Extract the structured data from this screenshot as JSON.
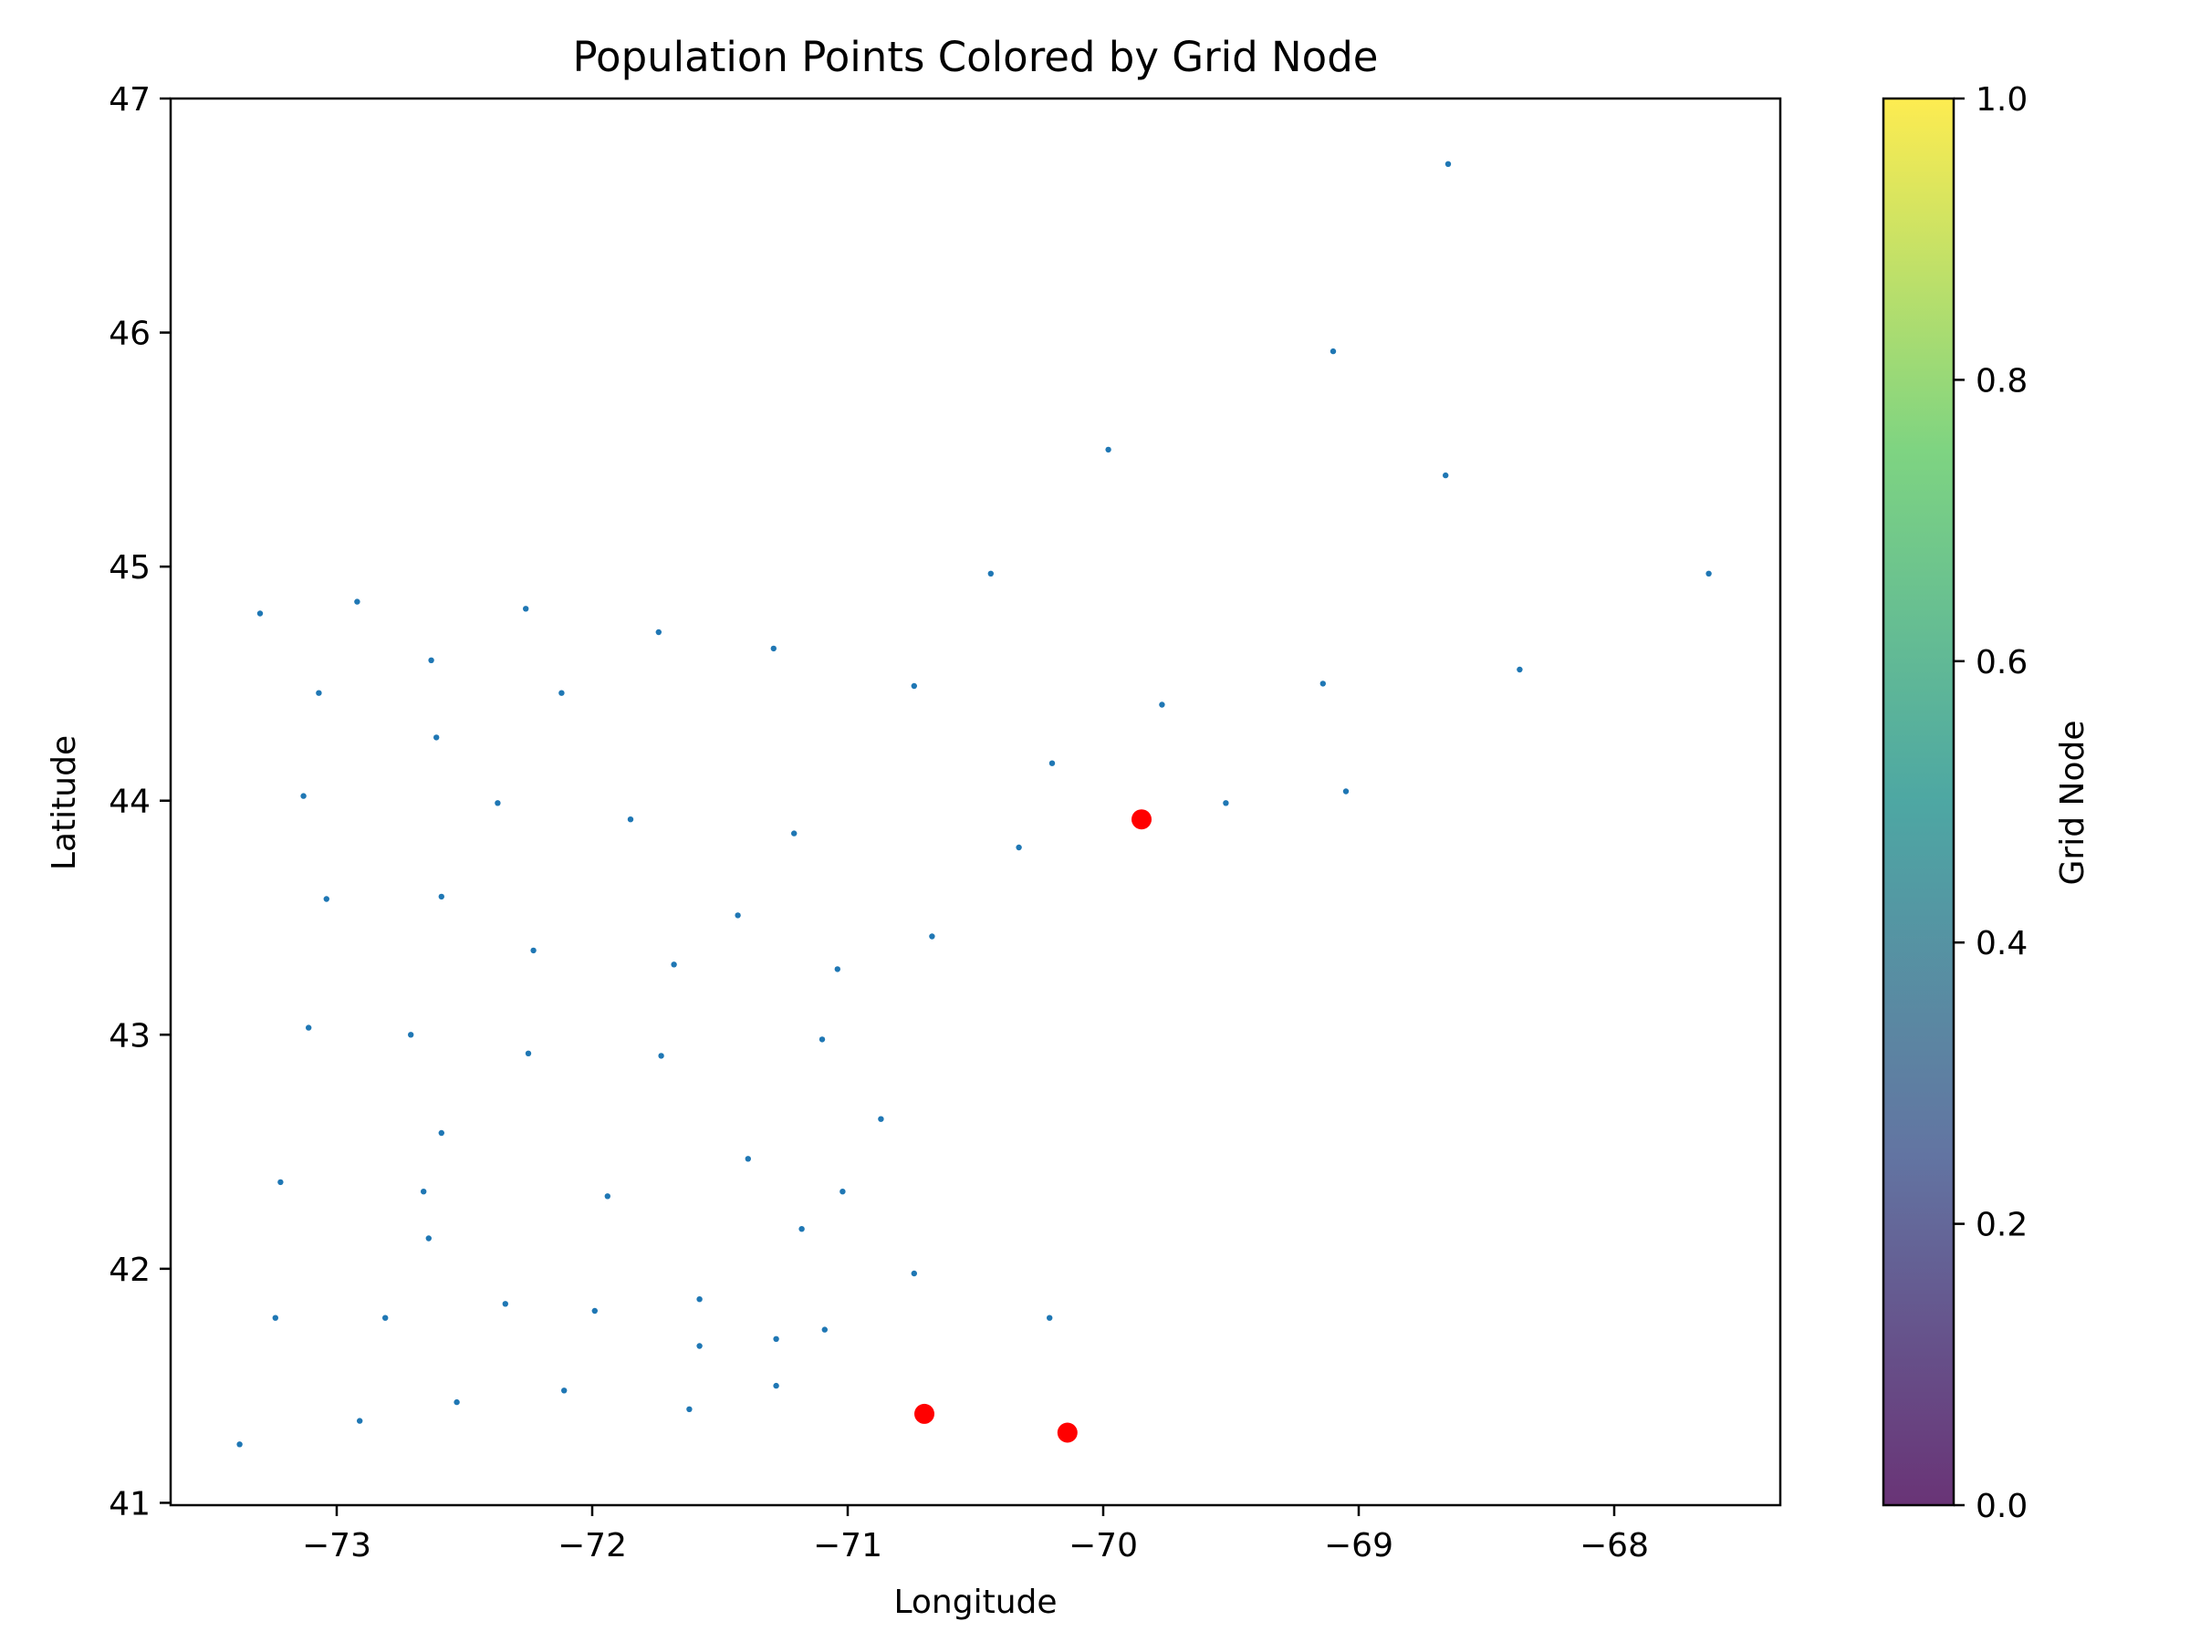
{
  "chart_data": {
    "type": "scatter",
    "title": "Population Points Colored by Grid Node",
    "xlabel": "Longitude",
    "ylabel": "Latitude",
    "xlim": [
      -73.65,
      -67.35
    ],
    "ylim": [
      40.99,
      47.0
    ],
    "x_ticks": [
      {
        "value": -73,
        "label": "−73"
      },
      {
        "value": -72,
        "label": "−72"
      },
      {
        "value": -71,
        "label": "−71"
      },
      {
        "value": -70,
        "label": "−70"
      },
      {
        "value": -69,
        "label": "−69"
      },
      {
        "value": -68,
        "label": "−68"
      }
    ],
    "y_ticks": [
      {
        "value": 41,
        "label": "41"
      },
      {
        "value": 42,
        "label": "42"
      },
      {
        "value": 43,
        "label": "43"
      },
      {
        "value": 44,
        "label": "44"
      },
      {
        "value": 45,
        "label": "45"
      },
      {
        "value": 46,
        "label": "46"
      },
      {
        "value": 47,
        "label": "47"
      }
    ],
    "grid": false,
    "series": [
      {
        "color": "#1f77b4",
        "marker": "small-dot",
        "points": [
          [
            -68.65,
            46.72
          ],
          [
            -69.1,
            45.92
          ],
          [
            -69.98,
            45.5
          ],
          [
            -68.66,
            45.39
          ],
          [
            -70.44,
            44.97
          ],
          [
            -67.63,
            44.97
          ],
          [
            -72.92,
            44.85
          ],
          [
            -73.3,
            44.8
          ],
          [
            -72.26,
            44.82
          ],
          [
            -71.74,
            44.72
          ],
          [
            -71.29,
            44.65
          ],
          [
            -72.63,
            44.6
          ],
          [
            -68.37,
            44.56
          ],
          [
            -73.07,
            44.46
          ],
          [
            -72.12,
            44.46
          ],
          [
            -70.74,
            44.49
          ],
          [
            -69.14,
            44.5
          ],
          [
            -69.77,
            44.41
          ],
          [
            -72.61,
            44.27
          ],
          [
            -70.2,
            44.16
          ],
          [
            -73.13,
            44.02
          ],
          [
            -72.37,
            43.99
          ],
          [
            -71.85,
            43.92
          ],
          [
            -71.21,
            43.86
          ],
          [
            -69.52,
            43.99
          ],
          [
            -69.05,
            44.04
          ],
          [
            -70.33,
            43.8
          ],
          [
            -73.04,
            43.58
          ],
          [
            -72.59,
            43.59
          ],
          [
            -71.43,
            43.51
          ],
          [
            -70.67,
            43.42
          ],
          [
            -72.23,
            43.36
          ],
          [
            -71.68,
            43.3
          ],
          [
            -71.04,
            43.28
          ],
          [
            -73.11,
            43.03
          ],
          [
            -72.71,
            43.0
          ],
          [
            -72.25,
            42.92
          ],
          [
            -71.73,
            42.91
          ],
          [
            -71.1,
            42.98
          ],
          [
            -70.87,
            42.64
          ],
          [
            -72.59,
            42.58
          ],
          [
            -71.39,
            42.47
          ],
          [
            -73.22,
            42.37
          ],
          [
            -72.66,
            42.33
          ],
          [
            -71.94,
            42.31
          ],
          [
            -71.02,
            42.33
          ],
          [
            -72.64,
            42.13
          ],
          [
            -71.18,
            42.17
          ],
          [
            -70.74,
            41.98
          ],
          [
            -73.24,
            41.79
          ],
          [
            -72.81,
            41.79
          ],
          [
            -72.34,
            41.85
          ],
          [
            -71.99,
            41.82
          ],
          [
            -71.58,
            41.87
          ],
          [
            -71.58,
            41.67
          ],
          [
            -71.28,
            41.7
          ],
          [
            -71.09,
            41.74
          ],
          [
            -70.21,
            41.79
          ],
          [
            -73.38,
            41.25
          ],
          [
            -72.91,
            41.35
          ],
          [
            -72.53,
            41.43
          ],
          [
            -72.11,
            41.48
          ],
          [
            -71.62,
            41.4
          ],
          [
            -71.28,
            41.5
          ]
        ]
      },
      {
        "color": "#ff0000",
        "marker": "large-dot",
        "points": [
          [
            -69.85,
            43.92
          ],
          [
            -70.7,
            41.38
          ],
          [
            -70.14,
            41.3
          ]
        ]
      }
    ],
    "colorbar": {
      "label": "Grid Node",
      "colormap": "viridis",
      "range": [
        0,
        1
      ],
      "ticks": [
        {
          "value": 0.0,
          "label": "0.0"
        },
        {
          "value": 0.2,
          "label": "0.2"
        },
        {
          "value": 0.4,
          "label": "0.4"
        },
        {
          "value": 0.6,
          "label": "0.6"
        },
        {
          "value": 0.8,
          "label": "0.8"
        },
        {
          "value": 1.0,
          "label": "1.0"
        }
      ],
      "stops": [
        "#440154",
        "#3b528b",
        "#21918c",
        "#5ec962",
        "#fde725"
      ]
    }
  }
}
